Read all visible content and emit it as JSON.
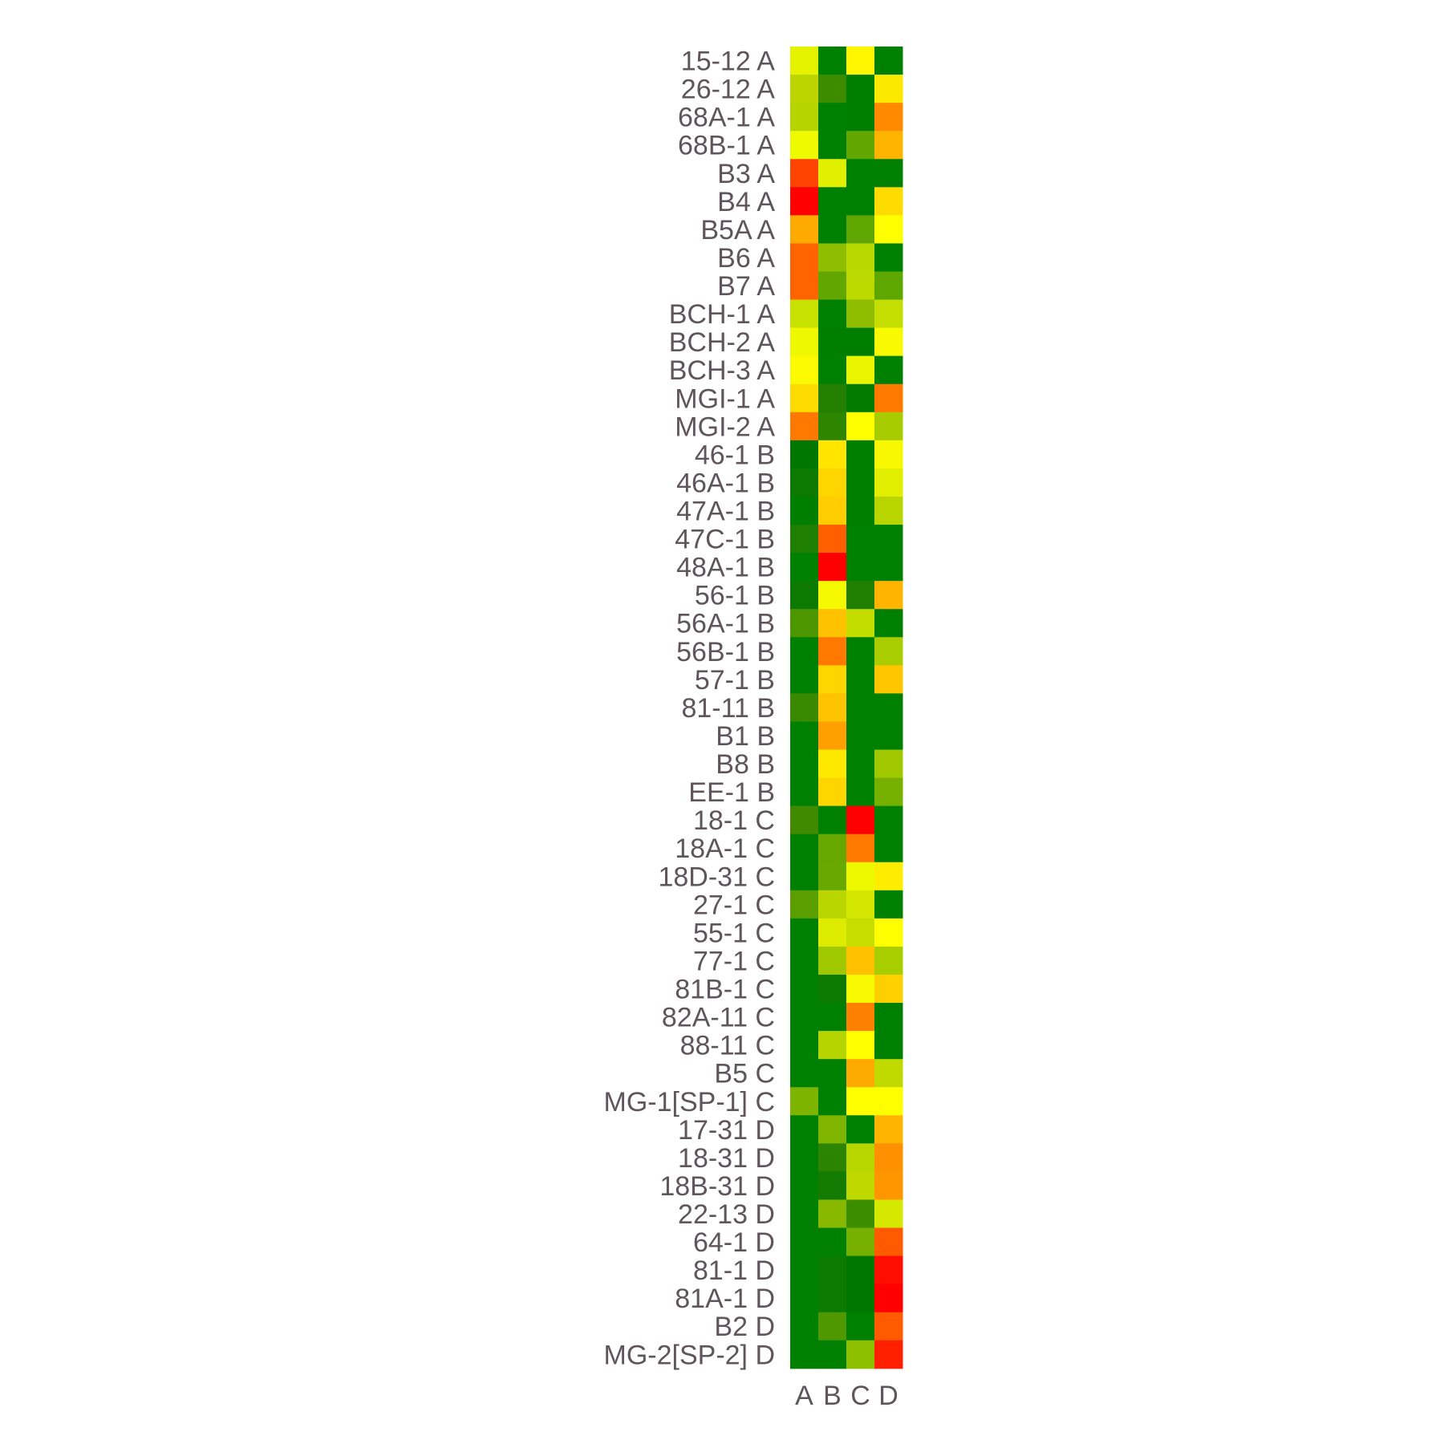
{
  "chart_data": {
    "type": "heatmap",
    "title": "",
    "xlabel": "",
    "ylabel": "",
    "legend": "none",
    "columns": [
      "A",
      "B",
      "C",
      "D"
    ],
    "rows": [
      {
        "label": "15-12 A",
        "colors": [
          "#e6f300",
          "#008000",
          "#fff600",
          "#008000"
        ]
      },
      {
        "label": "26-12 A",
        "colors": [
          "#bcd500",
          "#3d8c00",
          "#007e00",
          "#fbea00"
        ]
      },
      {
        "label": "68A-1 A",
        "colors": [
          "#b6d500",
          "#008000",
          "#007e00",
          "#ff8a00"
        ]
      },
      {
        "label": "68B-1 A",
        "colors": [
          "#eefb00",
          "#008000",
          "#62a600",
          "#ffb400"
        ]
      },
      {
        "label": "B3 A",
        "colors": [
          "#ff4300",
          "#e2f000",
          "#008000",
          "#008000"
        ]
      },
      {
        "label": "B4 A",
        "colors": [
          "#ff0000",
          "#008000",
          "#008000",
          "#ffdc00"
        ]
      },
      {
        "label": "B5A A",
        "colors": [
          "#ffaa00",
          "#008000",
          "#5fa600",
          "#ffff00"
        ]
      },
      {
        "label": "B6 A",
        "colors": [
          "#ff6400",
          "#8fbe00",
          "#b8d900",
          "#008000"
        ]
      },
      {
        "label": "B7 A",
        "colors": [
          "#ff6400",
          "#62a600",
          "#bcd900",
          "#5ea600"
        ]
      },
      {
        "label": "BCH-1 A",
        "colors": [
          "#c8e200",
          "#008000",
          "#8ebd00",
          "#c3de00"
        ]
      },
      {
        "label": "BCH-2 A",
        "colors": [
          "#eef800",
          "#007e00",
          "#007e00",
          "#f7fa00"
        ]
      },
      {
        "label": "BCH-3 A",
        "colors": [
          "#fbfa00",
          "#008000",
          "#eaf600",
          "#008000"
        ]
      },
      {
        "label": "MGI-1 A",
        "colors": [
          "#ffdc00",
          "#248000",
          "#007a00",
          "#ff7800"
        ]
      },
      {
        "label": "MGI-2 A",
        "colors": [
          "#ff7800",
          "#2e8500",
          "#ffff00",
          "#a8cc00"
        ]
      },
      {
        "label": "46-1 B",
        "colors": [
          "#007800",
          "#ffe500",
          "#007e00",
          "#f7f800"
        ]
      },
      {
        "label": "46A-1 B",
        "colors": [
          "#0c7a00",
          "#ffd500",
          "#007e00",
          "#e2ee00"
        ]
      },
      {
        "label": "47A-1 B",
        "colors": [
          "#007e00",
          "#ffcd00",
          "#007e00",
          "#b8d500"
        ]
      },
      {
        "label": "47C-1 B",
        "colors": [
          "#1f7f00",
          "#ff5f00",
          "#008000",
          "#008000"
        ]
      },
      {
        "label": "48A-1 B",
        "colors": [
          "#008000",
          "#ff0000",
          "#008000",
          "#008000"
        ]
      },
      {
        "label": "56-1 B",
        "colors": [
          "#0c7a00",
          "#f4f800",
          "#217f00",
          "#ffb400"
        ]
      },
      {
        "label": "56A-1 B",
        "colors": [
          "#4c9600",
          "#ffc200",
          "#c3dd00",
          "#008000"
        ]
      },
      {
        "label": "56B-1 B",
        "colors": [
          "#008000",
          "#ff7800",
          "#008000",
          "#a9cd00"
        ]
      },
      {
        "label": "57-1 B",
        "colors": [
          "#008000",
          "#ffd500",
          "#008000",
          "#ffc600"
        ]
      },
      {
        "label": "81-11 B",
        "colors": [
          "#398a00",
          "#ffc400",
          "#008000",
          "#008000"
        ]
      },
      {
        "label": "B1 B",
        "colors": [
          "#008000",
          "#ff9f00",
          "#008000",
          "#008000"
        ]
      },
      {
        "label": "B8 B",
        "colors": [
          "#008000",
          "#ffe800",
          "#008000",
          "#a0c800"
        ]
      },
      {
        "label": "EE-1 B",
        "colors": [
          "#008000",
          "#ffd500",
          "#008000",
          "#76b000"
        ]
      },
      {
        "label": "18-1 C",
        "colors": [
          "#408a00",
          "#008000",
          "#ff0000",
          "#008000"
        ]
      },
      {
        "label": "18A-1 C",
        "colors": [
          "#008000",
          "#67a800",
          "#ff7800",
          "#008000"
        ]
      },
      {
        "label": "18D-31 C",
        "colors": [
          "#008000",
          "#68a800",
          "#eef900",
          "#ffed00"
        ]
      },
      {
        "label": "27-1 C",
        "colors": [
          "#5a9e00",
          "#b9d600",
          "#d4e700",
          "#008000"
        ]
      },
      {
        "label": "55-1 C",
        "colors": [
          "#008000",
          "#dceb00",
          "#c5de00",
          "#ffff00"
        ]
      },
      {
        "label": "77-1 C",
        "colors": [
          "#008000",
          "#a0c800",
          "#ffc000",
          "#a9ce00"
        ]
      },
      {
        "label": "81B-1 C",
        "colors": [
          "#008000",
          "#0c7a00",
          "#f7fa00",
          "#ffd000"
        ]
      },
      {
        "label": "82A-11 C",
        "colors": [
          "#008000",
          "#008000",
          "#ff8000",
          "#008000"
        ]
      },
      {
        "label": "88-11 C",
        "colors": [
          "#008000",
          "#b5d500",
          "#ffff00",
          "#008000"
        ]
      },
      {
        "label": "B5 C",
        "colors": [
          "#008000",
          "#008000",
          "#ffaa00",
          "#c0da00"
        ]
      },
      {
        "label": "MG-1[SP-1] C",
        "colors": [
          "#7db400",
          "#008000",
          "#ffff00",
          "#ffff00"
        ]
      },
      {
        "label": "17-31 D",
        "colors": [
          "#008000",
          "#7fb500",
          "#008000",
          "#ffb400"
        ]
      },
      {
        "label": "18-31 D",
        "colors": [
          "#008000",
          "#2c8500",
          "#b8d600",
          "#ff9000"
        ]
      },
      {
        "label": "18B-31 D",
        "colors": [
          "#008000",
          "#127b00",
          "#bfd900",
          "#ff9600"
        ]
      },
      {
        "label": "22-13 D",
        "colors": [
          "#008000",
          "#88b900",
          "#3d8d00",
          "#d4e800"
        ]
      },
      {
        "label": "64-1 D",
        "colors": [
          "#008000",
          "#008000",
          "#76b000",
          "#ff5a00"
        ]
      },
      {
        "label": "81-1 D",
        "colors": [
          "#008000",
          "#0a7a00",
          "#007800",
          "#ff0d00"
        ]
      },
      {
        "label": "81A-1 D",
        "colors": [
          "#008000",
          "#0a7a00",
          "#007800",
          "#ff0000"
        ]
      },
      {
        "label": "B2 D",
        "colors": [
          "#008000",
          "#4f9800",
          "#008000",
          "#ff5a00"
        ]
      },
      {
        "label": "MG-2[SP-2] D",
        "colors": [
          "#008000",
          "#008000",
          "#8ec000",
          "#ff2000"
        ]
      }
    ],
    "color_scale": {
      "low": "#ff0000",
      "mid": "#ffff00",
      "high": "#008000"
    }
  }
}
